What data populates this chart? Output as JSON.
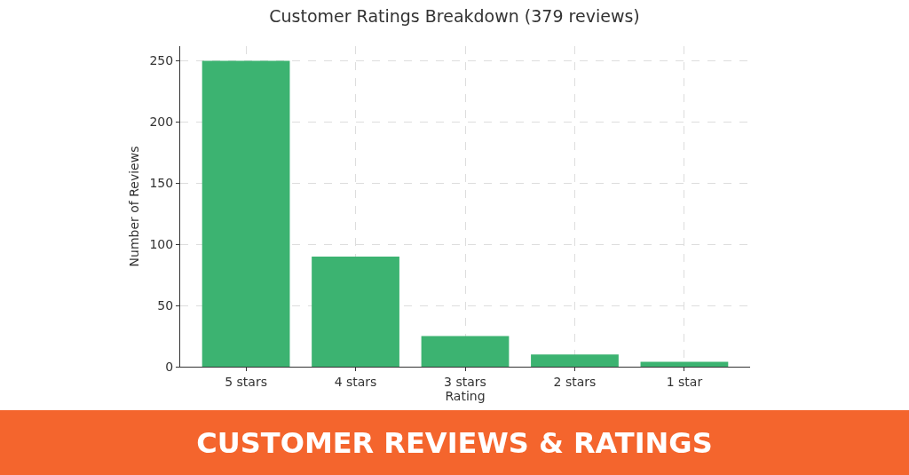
{
  "chart_data": {
    "type": "bar",
    "title": "Customer Ratings Breakdown (379 reviews)",
    "xlabel": "Rating",
    "ylabel": "Number of Reviews",
    "categories": [
      "5 stars",
      "4 stars",
      "3 stars",
      "2 stars",
      "1 star"
    ],
    "values": [
      250,
      90,
      25,
      10,
      4
    ],
    "color": "#3cb371",
    "ylim": [
      0,
      262
    ],
    "yticks": [
      0,
      50,
      100,
      150,
      200,
      250
    ],
    "grid": true,
    "annotations": [
      "CUSTOMER REVIEWS & RATINGS"
    ]
  }
}
